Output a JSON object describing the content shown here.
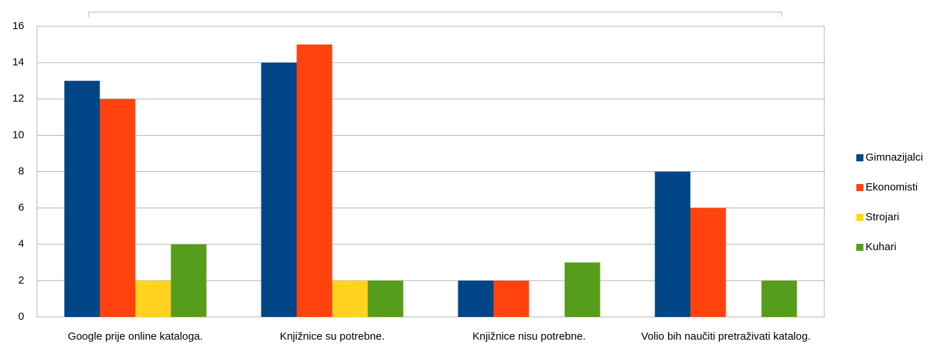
{
  "chart_data": {
    "type": "bar",
    "categories": [
      "Google prije online kataloga.",
      "Knjižnice su potrebne.",
      "Knjižnice nisu potrebne.",
      "Volio bih naučiti pretraživati katalog."
    ],
    "series": [
      {
        "name": "Gimnazijalci",
        "color": "#004586",
        "values": [
          13,
          14,
          2,
          8
        ]
      },
      {
        "name": "Ekonomisti",
        "color": "#ff420e",
        "values": [
          12,
          15,
          2,
          6
        ]
      },
      {
        "name": "Strojari",
        "color": "#ffd320",
        "values": [
          2,
          2,
          0,
          0
        ]
      },
      {
        "name": "Kuhari",
        "color": "#579d1c",
        "values": [
          4,
          2,
          3,
          2
        ]
      }
    ],
    "ylim": [
      0,
      16
    ],
    "yticks": [
      0,
      2,
      4,
      6,
      8,
      10,
      12,
      14,
      16
    ],
    "grid": true,
    "legend": "right"
  }
}
